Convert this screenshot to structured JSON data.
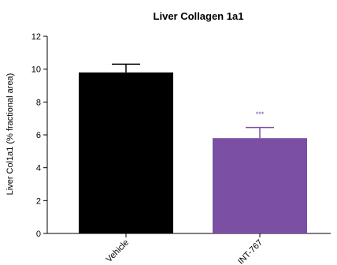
{
  "chart_data": {
    "type": "bar",
    "title": "Liver Collagen 1a1",
    "ylabel": "Liver Col1a1 (% fractional area)",
    "xlabel": "",
    "categories": [
      "Vehicle",
      "INT-767"
    ],
    "values": [
      9.8,
      5.8
    ],
    "error_upper": [
      10.3,
      6.45
    ],
    "bar_colors": [
      "#000000",
      "#7b4fa3"
    ],
    "annotations": [
      {
        "category": "INT-767",
        "text": "***",
        "y": 7.1,
        "color": "#7b4fa3"
      }
    ],
    "ylim": [
      0,
      12
    ],
    "yticks": [
      0,
      2,
      4,
      6,
      8,
      10,
      12
    ],
    "grid": false,
    "legend": "none"
  },
  "colors": {
    "axis": "#000000",
    "text": "#000000"
  }
}
